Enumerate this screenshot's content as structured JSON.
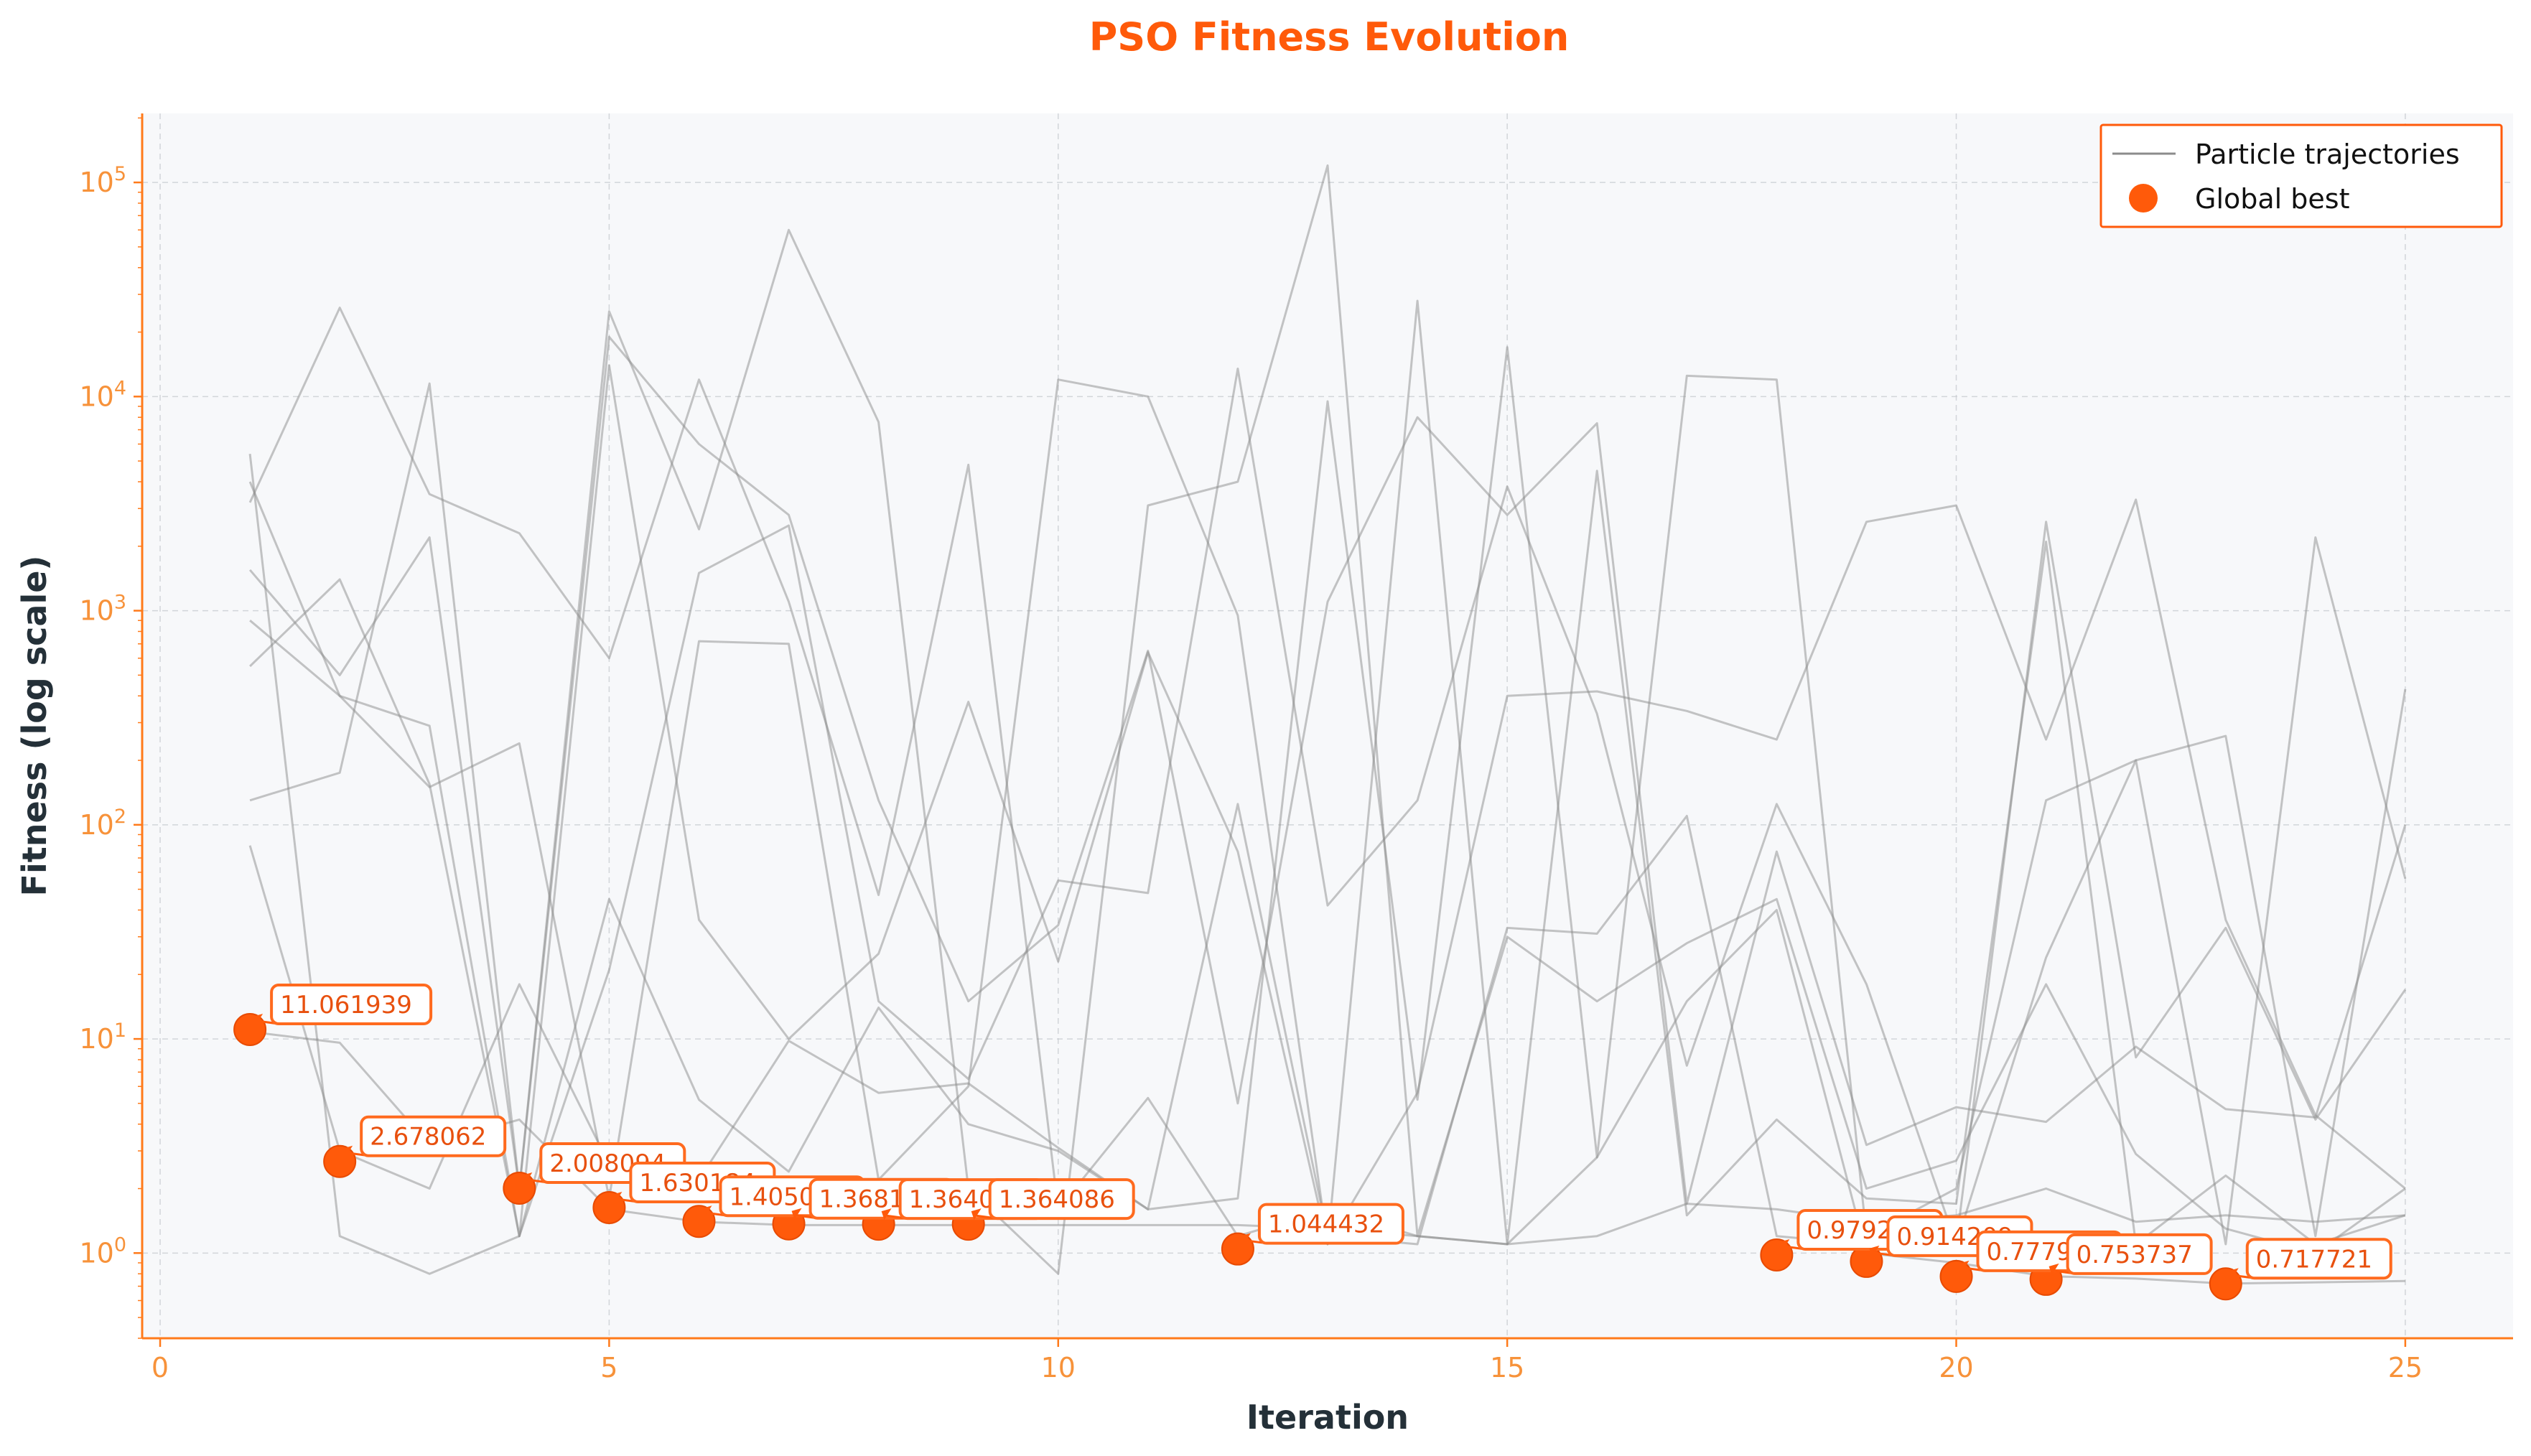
{
  "chart_data": {
    "type": "line",
    "title": "PSO Fitness Evolution",
    "xlabel": "Iteration",
    "ylabel": "Fitness (log scale)",
    "xlim": [
      -0.2,
      26.2
    ],
    "ylim": [
      0.4,
      210000
    ],
    "y_scale": "log",
    "x_ticks": [
      0,
      5,
      10,
      15,
      20,
      25
    ],
    "x_tick_labels": [
      "0",
      "5",
      "10",
      "15",
      "20",
      "25"
    ],
    "y_ticks": [
      1,
      10,
      100,
      1000,
      10000,
      100000
    ],
    "y_tick_labels": [
      {
        "base": "10",
        "exp": "0"
      },
      {
        "base": "10",
        "exp": "1"
      },
      {
        "base": "10",
        "exp": "2"
      },
      {
        "base": "10",
        "exp": "3"
      },
      {
        "base": "10",
        "exp": "4"
      },
      {
        "base": "10",
        "exp": "5"
      }
    ],
    "grid": true,
    "legend": {
      "placement": "top-right",
      "entries": [
        {
          "label": "Particle trajectories",
          "marker": "line"
        },
        {
          "label": "Global best",
          "marker": "circle"
        }
      ]
    },
    "colors": {
      "accent": "#FF5A0A",
      "trajectory": "#8C8C8C",
      "plot_background": "#F7F8FA",
      "axis": "#FF7A1A",
      "tick_text": "#F7923A"
    },
    "x": [
      1,
      2,
      3,
      4,
      5,
      6,
      7,
      8,
      9,
      10,
      11,
      12,
      13,
      14,
      15,
      16,
      17,
      18,
      19,
      20,
      21,
      22,
      23,
      24,
      25
    ],
    "trajectories": [
      [
        10.8,
        9.6,
        3.2,
        4.2,
        1.6,
        1.4,
        1.35,
        1.35,
        1.35,
        1.35,
        1.35,
        1.35,
        1.3,
        1.2,
        1.1,
        2.8,
        15,
        40,
        1.0,
        0.9,
        0.78,
        0.76,
        0.72,
        0.73,
        0.74
      ],
      [
        3200,
        26000,
        3500,
        2300,
        600,
        12000,
        1100,
        47,
        4800,
        1.6,
        5.3,
        1.2,
        1.6,
        1.2,
        1.1,
        1.2,
        1.7,
        1.6,
        1.4,
        1.5,
        2.0,
        1.4,
        1.5,
        1.4,
        1.5
      ],
      [
        1550,
        500,
        2200,
        2,
        25000,
        2400,
        60000,
        7600,
        2.0,
        0.8,
        3100,
        4000,
        120000,
        1.2,
        30,
        15,
        28,
        45,
        2.0,
        2.7,
        18,
        2.9,
        1.3,
        1.0,
        2.0
      ],
      [
        130,
        175,
        11500,
        2,
        19000,
        6000,
        2800,
        130,
        15,
        34,
        650,
        5,
        1100,
        8000,
        2800,
        7500,
        1.7,
        75,
        3.2,
        4.8,
        4.1,
        9.2,
        4.7,
        4.3,
        100
      ],
      [
        4000,
        400,
        150,
        240,
        1.8,
        720,
        700,
        2.2,
        6.0,
        12000,
        10000,
        950,
        1.1,
        5.6,
        400,
        420,
        340,
        250,
        2600,
        3100,
        250,
        3300,
        36,
        4.4,
        2.0
      ],
      [
        80,
        3,
        2.0,
        18,
        2.6,
        2.2,
        9.8,
        5.6,
        6.2,
        3.1,
        1.6,
        1.8,
        9500,
        5.2,
        17000,
        2.8,
        12500,
        12000,
        1.2,
        2.0,
        130,
        200,
        260,
        1.2,
        430
      ],
      [
        5400,
        1.2,
        0.8,
        1.2,
        21,
        1500,
        2500,
        15,
        6.5,
        55,
        48,
        13500,
        42,
        130,
        3800,
        330,
        7.5,
        125,
        18,
        1.1,
        2600,
        8.2,
        33,
        4.2,
        17
      ],
      [
        900,
        400,
        290,
        1.2,
        14000,
        36,
        10,
        25,
        375,
        23,
        640,
        75,
        1.1,
        28000,
        1.1,
        4500,
        1.5,
        4.2,
        1.8,
        1.7,
        2100,
        1.1,
        2.3,
        1.1,
        1.5
      ],
      [
        550,
        1400,
        155,
        1.2,
        45,
        5.2,
        2.4,
        14,
        4.0,
        3.0,
        1.6,
        125,
        1.2,
        1.1,
        33,
        31,
        110,
        1.2,
        1.1,
        1.1,
        24,
        200,
        1.1,
        2200,
        56
      ]
    ],
    "global_best": {
      "x": [
        1,
        2,
        4,
        5,
        6,
        7,
        8,
        9,
        12,
        18,
        19,
        20,
        21,
        23
      ],
      "y": [
        11.061939,
        2.678062,
        2.008094,
        1.630184,
        1.405022,
        1.368112,
        1.364086,
        1.364086,
        1.044432,
        0.979205,
        0.914209,
        0.777901,
        0.753737,
        0.717721
      ],
      "labels": [
        "11.061939",
        "2.678062",
        "2.008094",
        "1.630184",
        "1.405022",
        "1.368112",
        "1.364086",
        "1.364086",
        "1.044432",
        "0.979205",
        "0.914209",
        "0.777901",
        "0.753737",
        "0.717721"
      ]
    }
  }
}
